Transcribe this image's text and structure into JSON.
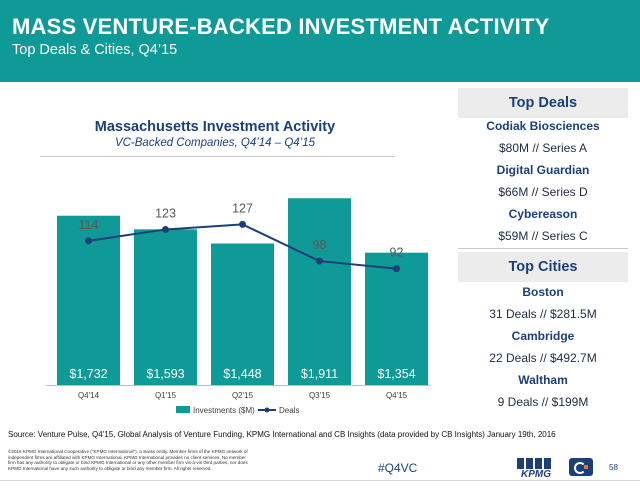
{
  "header": {
    "title": "MASS VENTURE-BACKED INVESTMENT ACTIVITY",
    "subtitle": "Top Deals & Cities, Q4’15"
  },
  "chart_data": {
    "type": "bar",
    "title": "Massachusetts Investment Activity",
    "subtitle": "VC-Backed Companies, Q4’14 – Q4’15",
    "categories": [
      "Q4'14",
      "Q1'15",
      "Q2'15",
      "Q3'15",
      "Q4'15"
    ],
    "series": [
      {
        "name": "Investments ($M)",
        "kind": "bar",
        "values": [
          1732,
          1593,
          1448,
          1911,
          1354
        ],
        "labels": [
          "$1,732",
          "$1,593",
          "$1,448",
          "$1,911",
          "$1,354"
        ],
        "color": "#0f9a98"
      },
      {
        "name": "Deals",
        "kind": "line",
        "values": [
          114,
          123,
          127,
          98,
          92
        ],
        "labels": [
          "114",
          "123",
          "127",
          "98",
          "92"
        ],
        "color": "#1c3f7a"
      }
    ],
    "bar_ylim": [
      0,
      2200
    ],
    "line_ylim": [
      0,
      170
    ],
    "grid": false,
    "legend": "bottom"
  },
  "top_deals": {
    "heading": "Top Deals",
    "items": [
      {
        "name": "Codiak Biosciences",
        "detail": "$80M // Series A"
      },
      {
        "name": "Digital Guardian",
        "detail": "$66M // Series D"
      },
      {
        "name": "Cybereason",
        "detail": "$59M // Series C"
      }
    ]
  },
  "top_cities": {
    "heading": "Top Cities",
    "items": [
      {
        "name": "Boston",
        "detail": "31 Deals // $281.5M"
      },
      {
        "name": "Cambridge",
        "detail": "22 Deals // $492.7M"
      },
      {
        "name": "Waltham",
        "detail": "9 Deals // $199M"
      }
    ]
  },
  "footer": {
    "source": "Source: Venture Pulse, Q4'15, Global Analysis of Venture Funding, KPMG International and CB Insights (data provided by CB Insights) January 19th, 2016",
    "legal": "©2016 KPMG International Cooperative (\"KPMG International\"), a Swiss entity. Member firms of the KPMG network of independent firms are affiliated with KPMG International. KPMG International provides no client services. No member firm has any authority to obligate or bind KPMG International or any other member firm vis-à-vis third parties, nor does KPMG International have any such authority to obligate or bind any member firm. All rights reserved.",
    "hashtag": "#Q4VC",
    "kpmg_logo_text": "KPMG",
    "page_number": "58"
  },
  "colors": {
    "header_bg": "#0f9a98",
    "bar": "#0f9a98",
    "line": "#1c3f7a",
    "heading_text": "#1c3f7a"
  }
}
